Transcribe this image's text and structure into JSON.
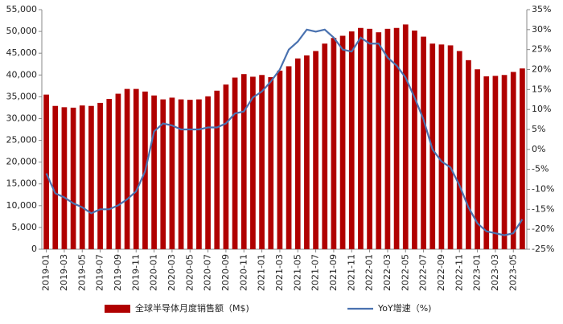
{
  "chart_data": {
    "type": "bar_line",
    "categories": [
      "2019-01",
      null,
      "2019-03",
      null,
      "2019-05",
      null,
      "2019-07",
      null,
      "2019-09",
      null,
      "2019-11",
      null,
      "2020-01",
      null,
      "2020-03",
      null,
      "2020-05",
      null,
      "2020-07",
      null,
      "2020-09",
      null,
      "2020-11",
      null,
      "2021-01",
      null,
      "2021-03",
      null,
      "2021-05",
      null,
      "2021-07",
      null,
      "2021-09",
      null,
      "2021-11",
      null,
      "2022-01",
      null,
      "2022-03",
      null,
      "2022-05",
      null,
      "2022-07",
      null,
      "2022-09",
      null,
      "2022-11",
      null,
      "2023-01",
      null,
      "2023-03",
      null,
      "2023-05",
      null
    ],
    "series": [
      {
        "name": "全球半导体月度销售额（M$)",
        "color": "#b00000",
        "type": "bar",
        "values": [
          35500,
          32900,
          32600,
          32500,
          33000,
          32900,
          33600,
          34500,
          35700,
          36800,
          36800,
          36200,
          35300,
          34400,
          34800,
          34400,
          34300,
          34400,
          35100,
          36400,
          37800,
          39400,
          40200,
          39600,
          40000,
          39500,
          41000,
          42000,
          43800,
          44500,
          45500,
          47200,
          48500,
          49000,
          50000,
          50800,
          50600,
          49800,
          50600,
          50800,
          51600,
          50200,
          48800,
          47200,
          47000,
          46800,
          45500,
          43400,
          41300,
          39700,
          39800,
          40000,
          40700,
          41500
        ]
      },
      {
        "name": "YoY增速（%)",
        "color": "#4a72b0",
        "type": "line",
        "axis": "y2",
        "values": [
          -6,
          -11,
          -12,
          -13.5,
          -14.5,
          -16,
          -15,
          -15,
          -14,
          -12.5,
          -10.5,
          -5.5,
          4.5,
          6.5,
          6,
          5,
          5,
          5,
          5.5,
          5.5,
          6.5,
          9,
          9.5,
          13,
          14.5,
          17,
          20,
          25,
          27,
          30,
          29.5,
          30,
          28,
          25,
          24.5,
          28,
          26.5,
          26.5,
          23,
          21,
          18,
          13,
          7.5,
          0,
          -3,
          -4.5,
          -9,
          -14.5,
          -18.5,
          -20.5,
          -21,
          -21.5,
          -21,
          -17.5
        ]
      }
    ],
    "ylim": [
      0,
      55000
    ],
    "yticks": [
      0,
      {
        "value": 5000,
        "label": "5,000"
      },
      {
        "value": 10000,
        "label": "10,000"
      },
      {
        "value": 15000,
        "label": "15,000"
      },
      {
        "value": 20000,
        "label": "20,000"
      },
      {
        "value": 25000,
        "label": "25,000"
      },
      {
        "value": 30000,
        "label": "30,000"
      },
      {
        "value": 35000,
        "label": "35,000"
      },
      {
        "value": 40000,
        "label": "40,000"
      },
      {
        "value": 45000,
        "label": "45,000"
      },
      {
        "value": 50000,
        "label": "50,000"
      },
      {
        "value": 55000,
        "label": "55,000"
      }
    ],
    "y2lim": [
      -25,
      35
    ],
    "y2ticks": [
      {
        "value": -25,
        "label": "-25%"
      },
      {
        "value": -20,
        "label": "-20%"
      },
      {
        "value": -15,
        "label": "-15%"
      },
      {
        "value": -10,
        "label": "-10%"
      },
      {
        "value": -5,
        "label": "-5%"
      },
      {
        "value": 0,
        "label": "0%"
      },
      {
        "value": 5,
        "label": "5%"
      },
      {
        "value": 10,
        "label": "10%"
      },
      {
        "value": 15,
        "label": "15%"
      },
      {
        "value": 20,
        "label": "20%"
      },
      {
        "value": 25,
        "label": "25%"
      },
      {
        "value": 30,
        "label": "30%"
      },
      {
        "value": 35,
        "label": "35%"
      }
    ],
    "grid": false
  }
}
